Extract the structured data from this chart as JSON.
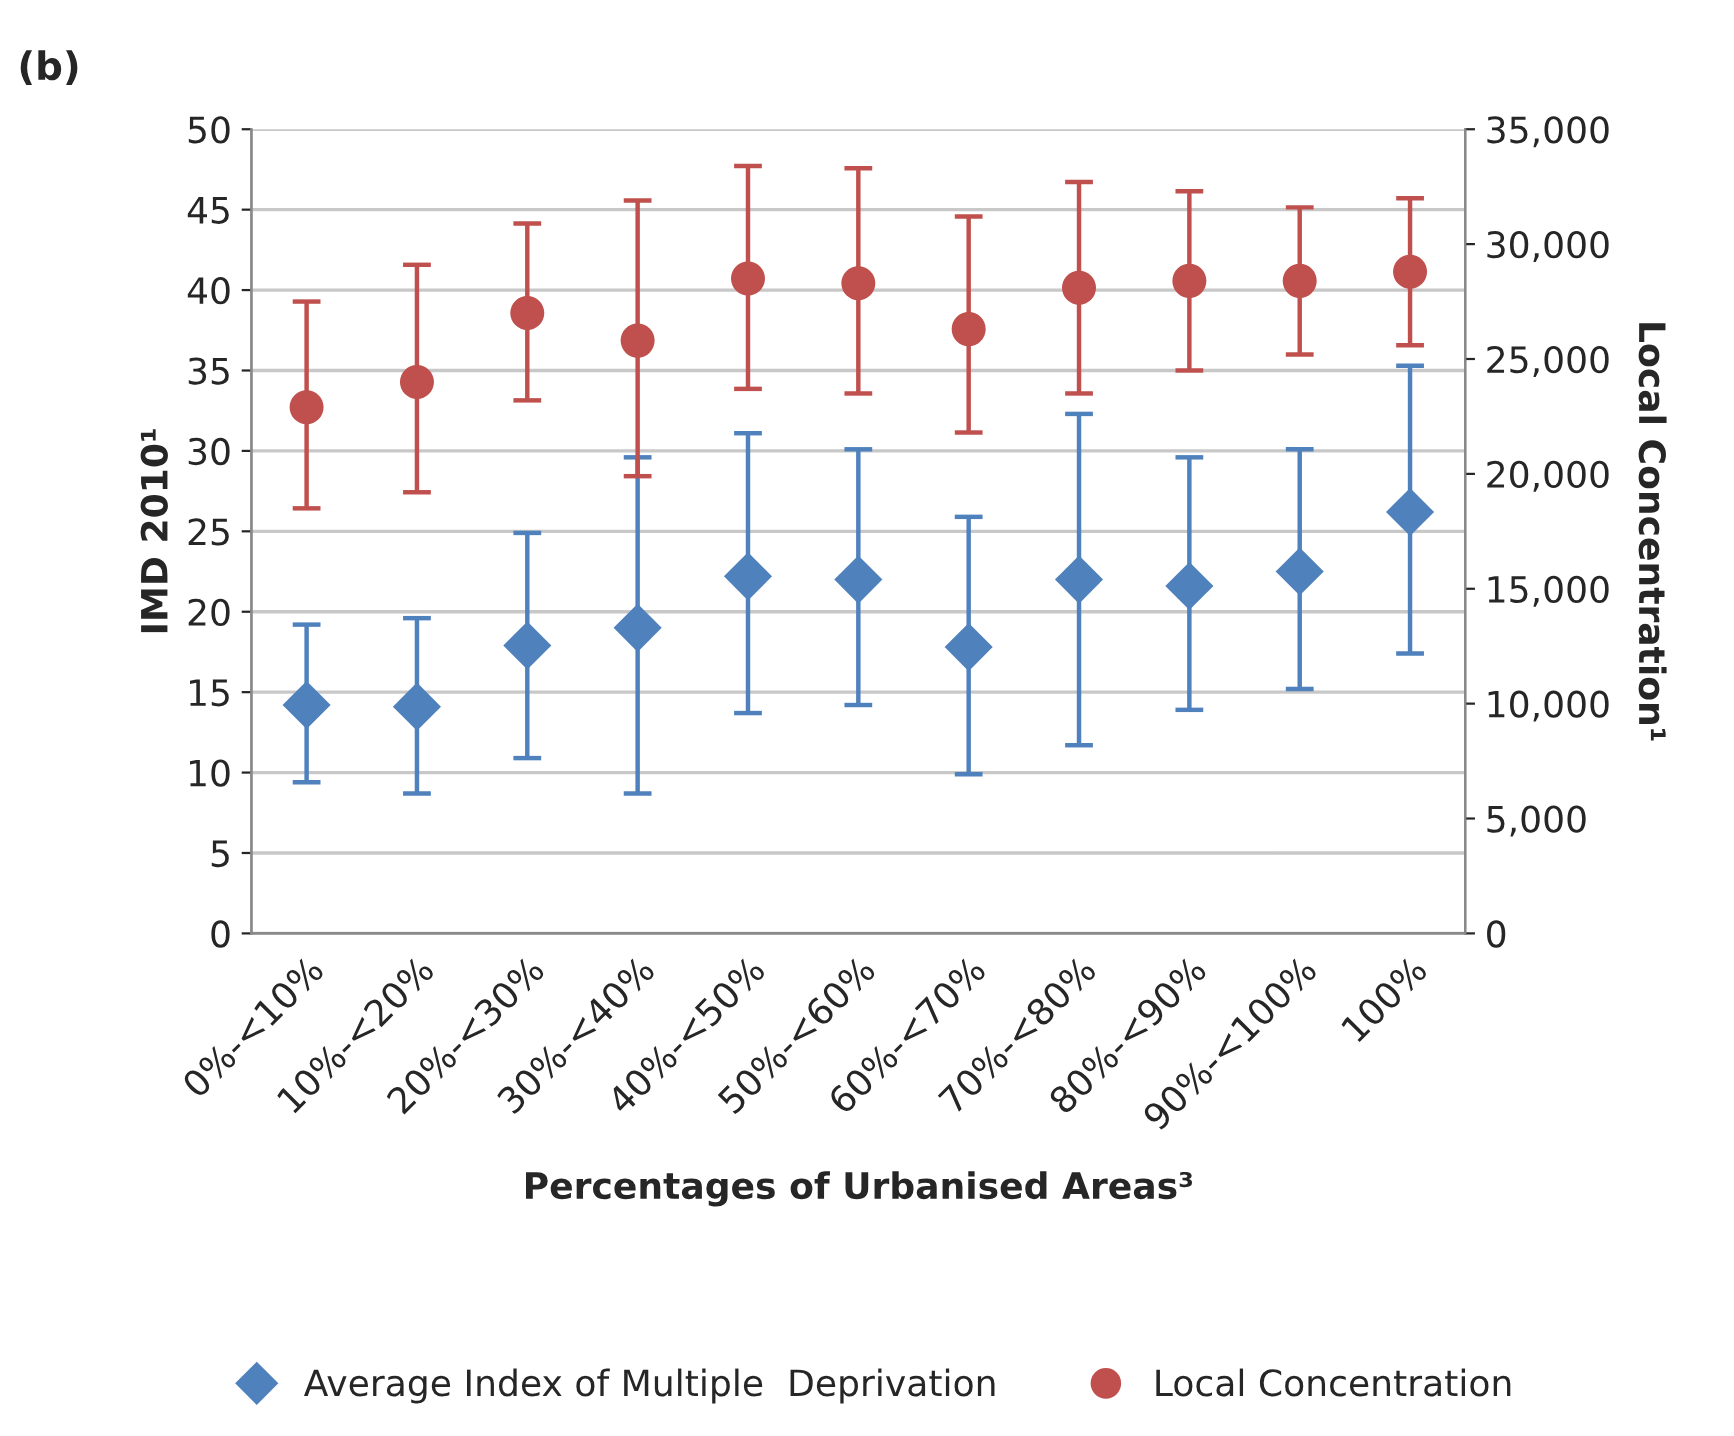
{
  "chart_data": {
    "type": "scatter",
    "title": "(b)",
    "xlabel": "Percentages of Urbanised Areas³",
    "ylabel": "IMD 2010¹",
    "y2label": "Local Concentration¹",
    "categories": [
      "0%-<10%",
      "10%-<20%",
      "20%-<30%",
      "30%-<40%",
      "40%-<50%",
      "50%-<60%",
      "60%-<70%",
      "70%-<80%",
      "80%-<90%",
      "90%-<100%",
      "100%"
    ],
    "series": [
      {
        "name": "Average Index of Multiple  Deprivation",
        "color": "#4f81bd",
        "marker": "diamond",
        "values": [
          14.2,
          14.1,
          17.9,
          19.0,
          22.2,
          22.0,
          17.8,
          22.0,
          21.6,
          22.5,
          26.2
        ],
        "errors": [
          [
            9.4,
            19.2
          ],
          [
            8.7,
            19.6
          ],
          [
            10.9,
            24.9
          ],
          [
            8.7,
            29.6
          ],
          [
            13.7,
            31.1
          ],
          [
            14.2,
            30.1
          ],
          [
            9.9,
            25.9
          ],
          [
            11.7,
            32.3
          ],
          [
            13.9,
            29.6
          ],
          [
            15.2,
            30.1
          ],
          [
            17.4,
            35.3
          ]
        ]
      },
      {
        "name": "Local Concentration",
        "color": "#c0504d",
        "marker": "circle",
        "axis": "y2",
        "values": [
          22900,
          24000,
          27000,
          25800,
          28500,
          28300,
          26300,
          28100,
          28400,
          28400,
          28800
        ],
        "errors": [
          [
            18500,
            27500
          ],
          [
            19200,
            29100
          ],
          [
            23200,
            30900
          ],
          [
            19900,
            31900
          ],
          [
            23700,
            33400
          ],
          [
            23500,
            33300
          ],
          [
            21800,
            31200
          ],
          [
            23500,
            32700
          ],
          [
            24500,
            32300
          ],
          [
            25200,
            31600
          ],
          [
            25600,
            32000
          ]
        ]
      }
    ],
    "ylim": [
      0,
      50
    ],
    "yticks": [
      0,
      5,
      10,
      15,
      20,
      25,
      30,
      35,
      40,
      45,
      50
    ],
    "y2lim": [
      0,
      35000
    ],
    "y2ticks": [
      0,
      {
        "value": 5000,
        "label": "5,000"
      },
      {
        "value": 10000,
        "label": "10,000"
      },
      {
        "value": 15000,
        "label": "15,000"
      },
      {
        "value": 20000,
        "label": "20,000"
      },
      {
        "value": 25000,
        "label": "25,000"
      },
      {
        "value": 30000,
        "label": "30,000"
      },
      {
        "value": 35000,
        "label": "35,000"
      }
    ],
    "grid": "y",
    "legend": "bottom"
  }
}
